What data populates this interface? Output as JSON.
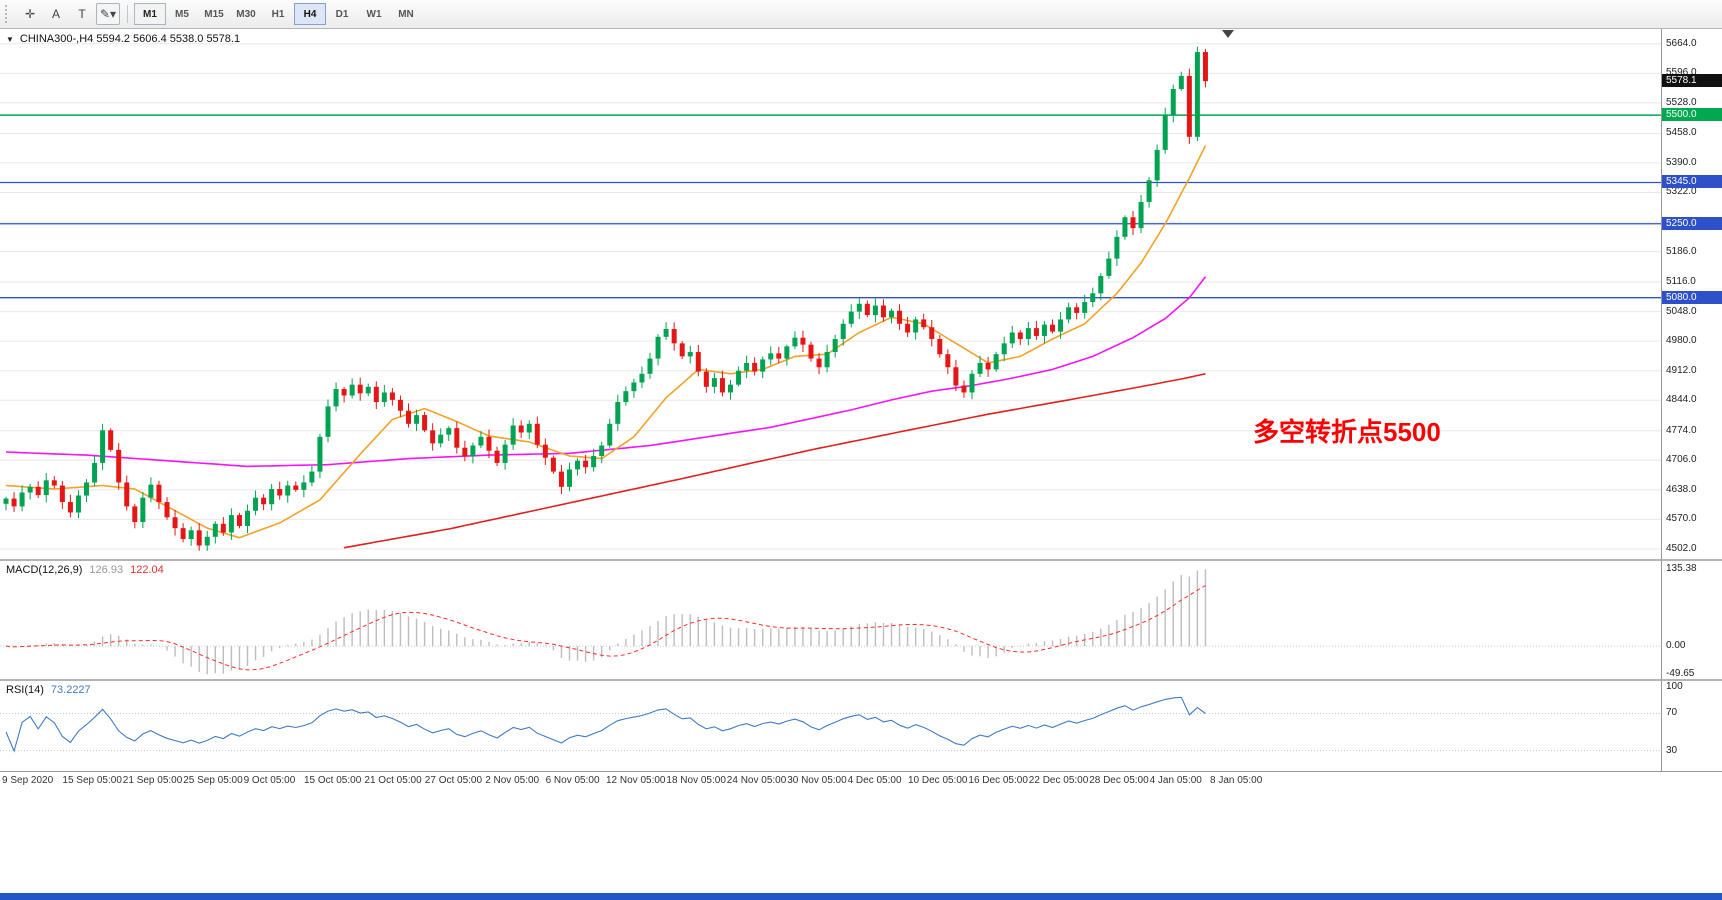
{
  "toolbar": {
    "icons": [
      {
        "name": "crosshair-icon",
        "glyph": "✛"
      },
      {
        "name": "text-label-icon",
        "glyph": "A"
      },
      {
        "name": "text-tool-icon",
        "glyph": "T"
      },
      {
        "name": "draw-tools-icon",
        "glyph": "✎▾"
      }
    ],
    "timeframes": [
      "M1",
      "M5",
      "M15",
      "M30",
      "H1",
      "H4",
      "D1",
      "W1",
      "MN"
    ],
    "active_timeframe": "H4",
    "boxed_timeframe": "M1"
  },
  "price_panel": {
    "title": "CHINA300-,H4 5594.2 5606.4 5538.0 5578.1",
    "menu_icon": "▼",
    "annotation": {
      "text": "多空转折点5500",
      "color": "#ff0000"
    },
    "axis_labels": [
      "5664.0",
      "5596.0",
      "5528.0",
      "5458.0",
      "5390.0",
      "5322.0",
      "5254.0",
      "5186.0",
      "5116.0",
      "5048.0",
      "4980.0",
      "4912.0",
      "4844.0",
      "4774.0",
      "4706.0",
      "4638.0",
      "4570.0",
      "4502.0"
    ],
    "badges": [
      {
        "value": "5578.1",
        "price": 5578.1,
        "bg": "#111111"
      },
      {
        "value": "5500.0",
        "price": 5500,
        "bg": "#00a84f"
      },
      {
        "value": "5345.0",
        "price": 5345,
        "bg": "#2e50c8"
      },
      {
        "value": "5250.0",
        "price": 5250,
        "bg": "#2e50c8"
      },
      {
        "value": "5080.0",
        "price": 5080,
        "bg": "#2e50c8"
      }
    ],
    "hlines": [
      {
        "price": 5500,
        "color": "#00a84f",
        "width": 1.5
      },
      {
        "price": 5345,
        "color": "#2e50c8",
        "width": 1.3
      },
      {
        "price": 5250,
        "color": "#2e50c8",
        "width": 1.3
      },
      {
        "price": 5080,
        "color": "#2e50c8",
        "width": 1.3
      }
    ]
  },
  "macd_panel": {
    "title": "MACD(12,26,9)",
    "value_main": "126.93",
    "value_signal": "122.04",
    "axis_labels": [
      "135.38",
      "0.00",
      "-49.65"
    ]
  },
  "rsi_panel": {
    "title": "RSI(14)",
    "value": "73.2227",
    "axis_labels": [
      "100",
      "70",
      "30"
    ],
    "levels": [
      70,
      30
    ]
  },
  "time_axis": {
    "labels": [
      "9 Sep 2020",
      "15 Sep 05:00",
      "21 Sep 05:00",
      "25 Sep 05:00",
      "9 Oct 05:00",
      "15 Oct 05:00",
      "21 Oct 05:00",
      "27 Oct 05:00",
      "2 Nov 05:00",
      "6 Nov 05:00",
      "12 Nov 05:00",
      "18 Nov 05:00",
      "24 Nov 05:00",
      "30 Nov 05:00",
      "4 Dec 05:00",
      "10 Dec 05:00",
      "16 Dec 05:00",
      "22 Dec 05:00",
      "28 Dec 05:00",
      "4 Jan 05:00",
      "8 Jan 05:00"
    ]
  },
  "footer_bar_color": "#2456c8",
  "chart_data": {
    "type": "candlestick",
    "symbol": "CHINA300-",
    "timeframe": "H4",
    "ohlc_display": {
      "open": 5594.2,
      "high": 5606.4,
      "low": 5538.0,
      "close": 5578.1
    },
    "price_range": [
      4479,
      5698
    ],
    "up_color": "#00a351",
    "down_color": "#e51616",
    "closes": [
      4618,
      4600,
      4632,
      4645,
      4626,
      4660,
      4648,
      4610,
      4586,
      4625,
      4655,
      4700,
      4775,
      4730,
      4655,
      4600,
      4564,
      4620,
      4650,
      4610,
      4575,
      4550,
      4525,
      4545,
      4510,
      4530,
      4560,
      4540,
      4580,
      4555,
      4590,
      4620,
      4605,
      4640,
      4625,
      4648,
      4638,
      4655,
      4680,
      4760,
      4830,
      4870,
      4855,
      4880,
      4860,
      4875,
      4840,
      4862,
      4845,
      4820,
      4790,
      4810,
      4775,
      4745,
      4765,
      4780,
      4735,
      4715,
      4740,
      4760,
      4728,
      4700,
      4742,
      4786,
      4770,
      4790,
      4742,
      4712,
      4680,
      4645,
      4685,
      4705,
      4690,
      4716,
      4740,
      4790,
      4840,
      4865,
      4885,
      4905,
      4940,
      4990,
      5008,
      4975,
      4945,
      4955,
      4910,
      4875,
      4895,
      4862,
      4880,
      4912,
      4930,
      4910,
      4938,
      4952,
      4940,
      4968,
      4988,
      4972,
      4940,
      4920,
      4955,
      4985,
      5020,
      5048,
      5066,
      5040,
      5062,
      5035,
      5050,
      5020,
      5000,
      5030,
      5012,
      4985,
      4950,
      4920,
      4878,
      4862,
      4905,
      4930,
      4915,
      4950,
      4975,
      5000,
      4985,
      5010,
      4992,
      5018,
      5002,
      5030,
      5058,
      5045,
      5070,
      5090,
      5130,
      5170,
      5220,
      5265,
      5240,
      5300,
      5350,
      5420,
      5500,
      5560,
      5590,
      5450,
      5645,
      5578
    ],
    "ma_colors": {
      "orange": "#f2a227",
      "magenta": "#f513f5",
      "red": "#e02020"
    },
    "ma_orange": [
      [
        0,
        4648
      ],
      [
        6,
        4640
      ],
      [
        12,
        4648
      ],
      [
        16,
        4640
      ],
      [
        20,
        4600
      ],
      [
        25,
        4550
      ],
      [
        29,
        4528
      ],
      [
        34,
        4562
      ],
      [
        39,
        4615
      ],
      [
        44,
        4720
      ],
      [
        48,
        4800
      ],
      [
        52,
        4825
      ],
      [
        56,
        4795
      ],
      [
        60,
        4762
      ],
      [
        65,
        4748
      ],
      [
        70,
        4716
      ],
      [
        74,
        4710
      ],
      [
        78,
        4760
      ],
      [
        82,
        4850
      ],
      [
        86,
        4915
      ],
      [
        90,
        4905
      ],
      [
        94,
        4915
      ],
      [
        98,
        4945
      ],
      [
        102,
        4950
      ],
      [
        106,
        5000
      ],
      [
        110,
        5035
      ],
      [
        114,
        5020
      ],
      [
        118,
        4975
      ],
      [
        122,
        4930
      ],
      [
        126,
        4945
      ],
      [
        130,
        4985
      ],
      [
        134,
        5020
      ],
      [
        138,
        5090
      ],
      [
        141,
        5160
      ],
      [
        144,
        5250
      ],
      [
        147,
        5355
      ],
      [
        149,
        5430
      ]
    ],
    "ma_magenta": [
      [
        0,
        4725
      ],
      [
        10,
        4718
      ],
      [
        20,
        4705
      ],
      [
        30,
        4692
      ],
      [
        40,
        4696
      ],
      [
        50,
        4710
      ],
      [
        60,
        4718
      ],
      [
        70,
        4722
      ],
      [
        80,
        4740
      ],
      [
        90,
        4768
      ],
      [
        95,
        4782
      ],
      [
        100,
        4802
      ],
      [
        105,
        4822
      ],
      [
        110,
        4845
      ],
      [
        115,
        4865
      ],
      [
        120,
        4878
      ],
      [
        125,
        4895
      ],
      [
        130,
        4915
      ],
      [
        135,
        4945
      ],
      [
        140,
        4988
      ],
      [
        144,
        5032
      ],
      [
        147,
        5080
      ],
      [
        149,
        5128
      ]
    ],
    "ma_red": [
      [
        42,
        4505
      ],
      [
        55,
        4548
      ],
      [
        70,
        4608
      ],
      [
        85,
        4668
      ],
      [
        100,
        4730
      ],
      [
        112,
        4775
      ],
      [
        122,
        4812
      ],
      [
        132,
        4845
      ],
      [
        140,
        4872
      ],
      [
        146,
        4893
      ],
      [
        149,
        4905
      ]
    ],
    "macd_range": [
      -58,
      150
    ],
    "macd_scale_max": 135.38,
    "macd_scale_min": -49.65,
    "macd_colors": {
      "histogram": "#bdbdbd",
      "signal": "#ff2a2a"
    },
    "rsi_range": [
      8,
      105
    ],
    "rsi_color": "#3f7cc4",
    "rsi_current": 73.2227
  }
}
